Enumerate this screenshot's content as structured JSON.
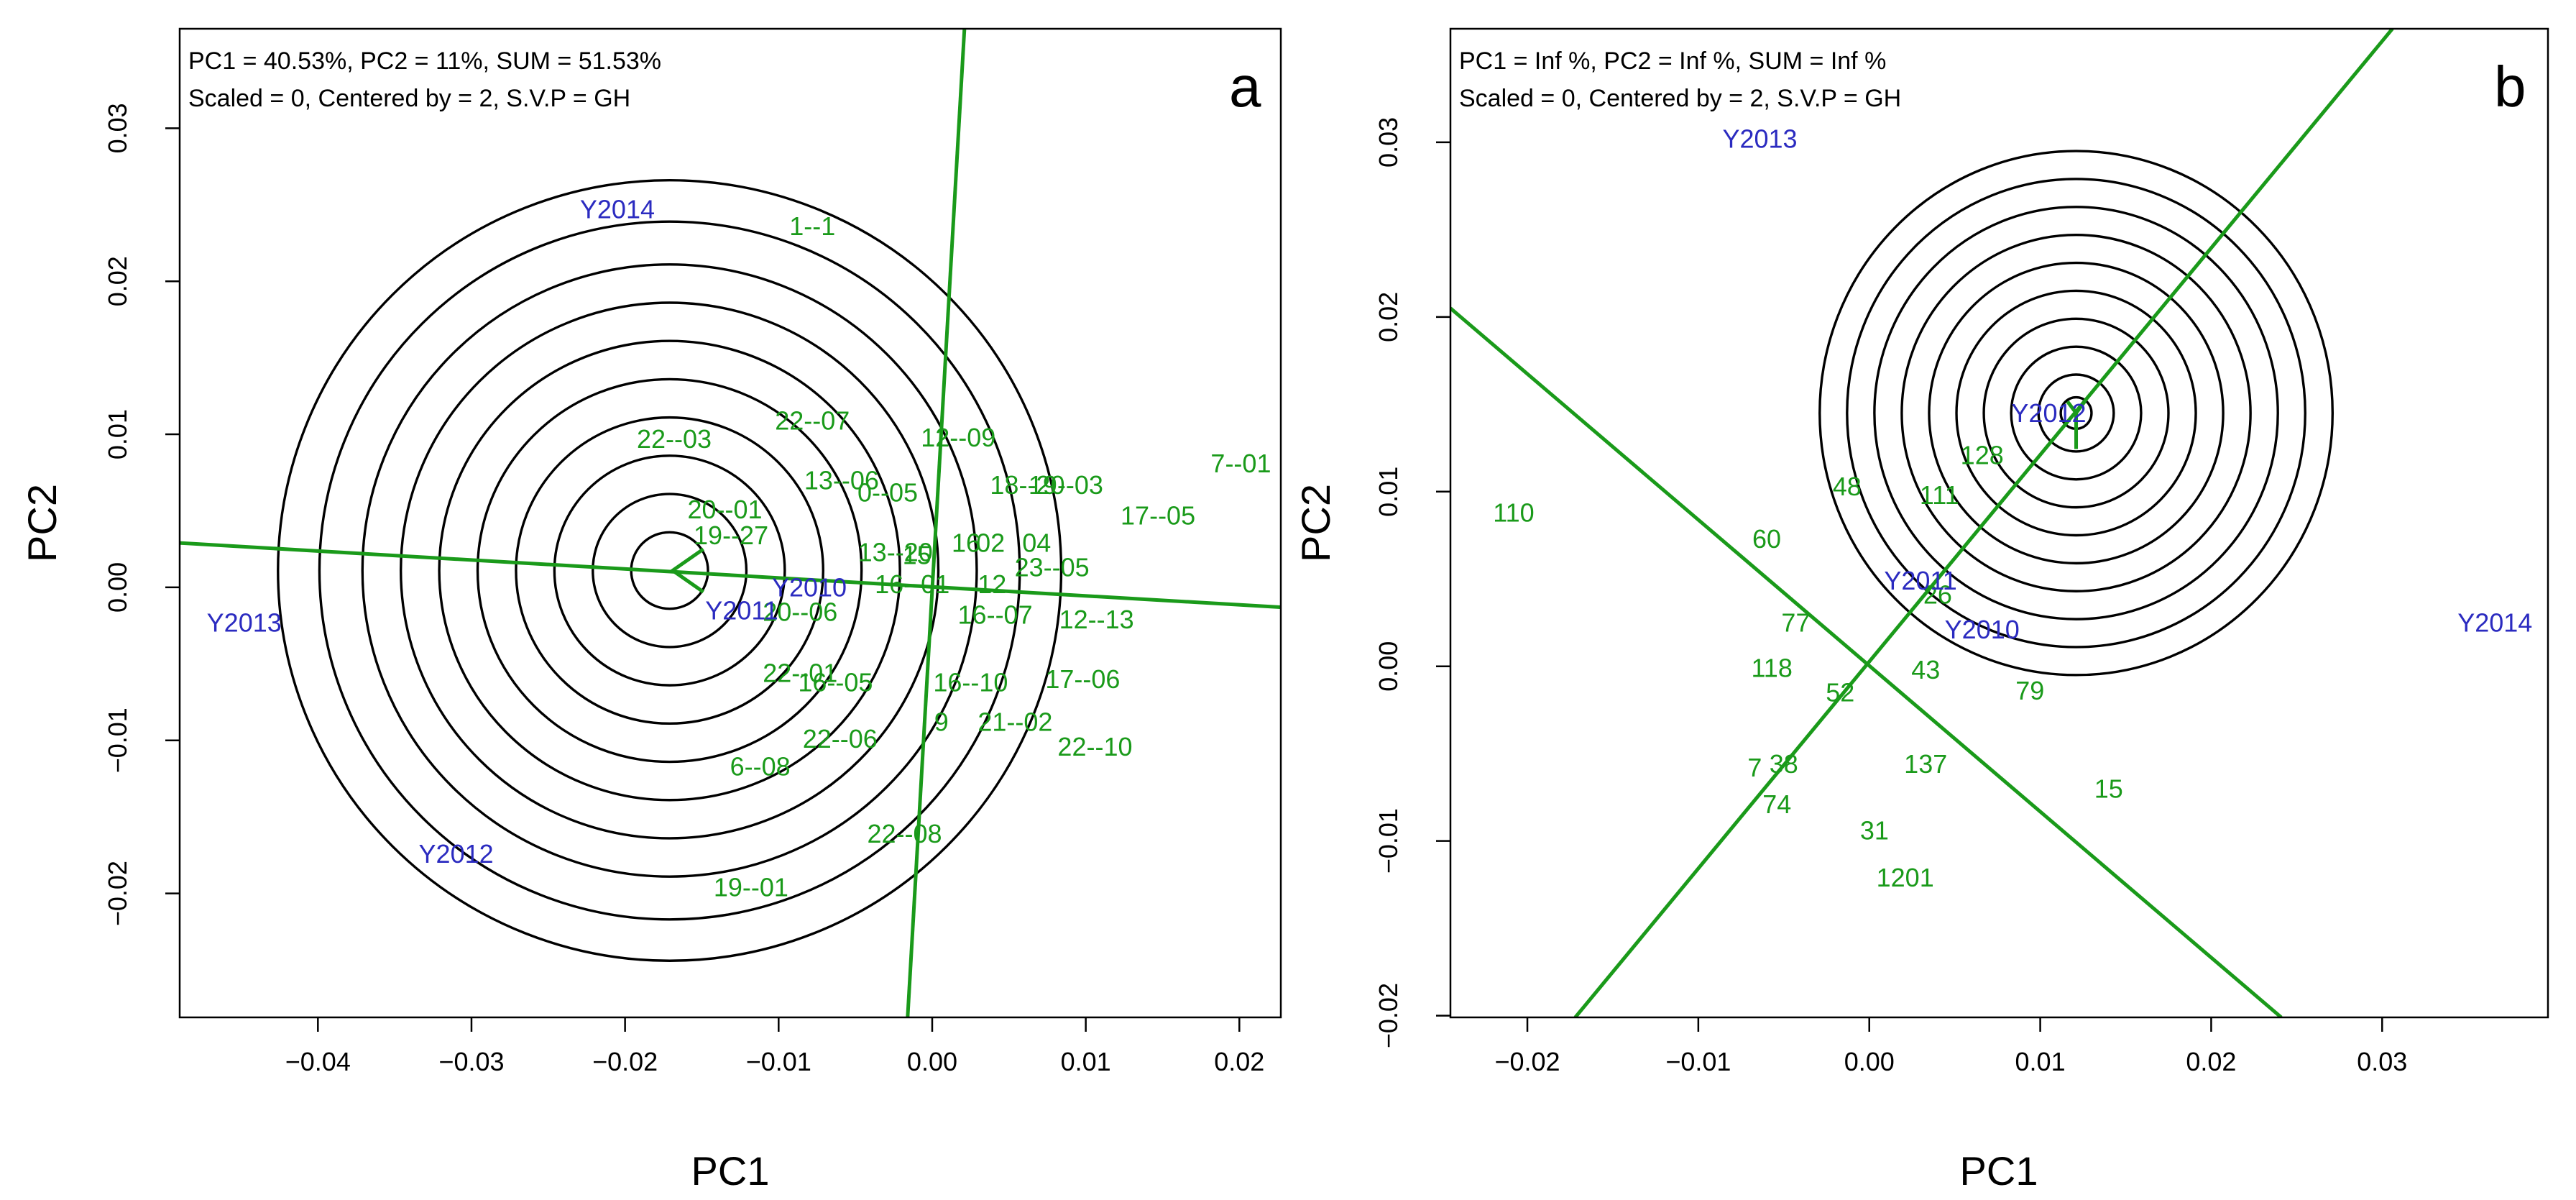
{
  "chart_data": [
    {
      "type": "scatter",
      "panel": "a",
      "info_lines": [
        "PC1 = 40.53%, PC2 = 11%, SUM = 51.53%",
        "Scaled = 0, Centered by = 2, S.V.P = GH"
      ],
      "xlabel": "PC1",
      "ylabel": "PC2",
      "xlim": [
        -0.049,
        0.0227
      ],
      "ylim": [
        -0.0281,
        0.0365
      ],
      "xticks": [
        -0.04,
        -0.03,
        -0.02,
        -0.01,
        0.0,
        0.01,
        0.02
      ],
      "xtick_labels": [
        "−0.04",
        "−0.03",
        "−0.02",
        "−0.01",
        "0.00",
        "0.01",
        "0.02"
      ],
      "yticks": [
        -0.02,
        -0.01,
        0.0,
        0.01,
        0.02,
        0.03
      ],
      "ytick_labels": [
        "−0.02",
        "−0.01",
        "0.00",
        "0.01",
        "0.02",
        "0.03"
      ],
      "rings": {
        "center": [
          -0.0171,
          0.0011
        ],
        "radii": [
          0.0025,
          0.005,
          0.0075,
          0.01,
          0.0125,
          0.015,
          0.0175,
          0.02,
          0.0228,
          0.0255
        ]
      },
      "lines": [
        {
          "from": [
            -0.049,
            0.0029
          ],
          "to": [
            0.0227,
            -0.0013
          ]
        },
        {
          "from": [
            -0.0016,
            -0.0281
          ],
          "to": [
            0.0021,
            0.0365
          ]
        }
      ],
      "arrow": {
        "tip": [
          -0.0169,
          0.0011
        ],
        "dx": 0.002,
        "dy": 0.0014
      },
      "environments": [
        {
          "label": "Y2014",
          "x": -0.0205,
          "y": 0.0247
        },
        {
          "label": "Y2013",
          "x": -0.0448,
          "y": -0.0023
        },
        {
          "label": "Y2012",
          "x": -0.031,
          "y": -0.0174
        },
        {
          "label": "Y2010",
          "x": -0.008,
          "y": 0.0
        },
        {
          "label": "Y2011",
          "x": -0.0124,
          "y": -0.0015
        }
      ],
      "genotypes": [
        {
          "label": "1--1",
          "x": -0.0078,
          "y": 0.0236
        },
        {
          "label": "22--07",
          "x": -0.0078,
          "y": 0.0109
        },
        {
          "label": "22--03",
          "x": -0.0168,
          "y": 0.0097
        },
        {
          "label": "12--09",
          "x": 0.0017,
          "y": 0.0098
        },
        {
          "label": "13--06",
          "x": -0.0059,
          "y": 0.007
        },
        {
          "label": "0--05",
          "x": -0.0029,
          "y": 0.0062
        },
        {
          "label": "18--20",
          "x": 0.0062,
          "y": 0.0067
        },
        {
          "label": "19--03",
          "x": 0.0087,
          "y": 0.0067
        },
        {
          "label": "7--01",
          "x": 0.0201,
          "y": 0.0081
        },
        {
          "label": "17--05",
          "x": 0.0147,
          "y": 0.0047
        },
        {
          "label": "20--01",
          "x": -0.0135,
          "y": 0.0051
        },
        {
          "label": "19--27",
          "x": -0.0131,
          "y": 0.0034
        },
        {
          "label": "13--20",
          "x": -0.0024,
          "y": 0.0023
        },
        {
          "label": "15",
          "x": -0.001,
          "y": 0.0021
        },
        {
          "label": "16",
          "x": 0.0022,
          "y": 0.0029
        },
        {
          "label": "02",
          "x": 0.0038,
          "y": 0.0029
        },
        {
          "label": "04",
          "x": 0.0068,
          "y": 0.0029
        },
        {
          "label": "23--05",
          "x": 0.0078,
          "y": 0.0013
        },
        {
          "label": "16--01",
          "x": -0.0013,
          "y": 0.0002
        },
        {
          "label": "12",
          "x": 0.0039,
          "y": 0.0002
        },
        {
          "label": "20--06",
          "x": -0.0086,
          "y": -0.0016
        },
        {
          "label": "16--07",
          "x": 0.0041,
          "y": -0.0018
        },
        {
          "label": "12--13",
          "x": 0.0107,
          "y": -0.0021
        },
        {
          "label": "22--01",
          "x": -0.0086,
          "y": -0.0056
        },
        {
          "label": "16--05",
          "x": -0.0063,
          "y": -0.0062
        },
        {
          "label": "16--10",
          "x": 0.0025,
          "y": -0.0062
        },
        {
          "label": "17--06",
          "x": 0.0098,
          "y": -0.006
        },
        {
          "label": "22--06",
          "x": -0.006,
          "y": -0.0099
        },
        {
          "label": "9",
          "x": 0.0006,
          "y": -0.0088
        },
        {
          "label": "21--02",
          "x": 0.0054,
          "y": -0.0088
        },
        {
          "label": "22--10",
          "x": 0.0106,
          "y": -0.0104
        },
        {
          "label": "6--08",
          "x": -0.0112,
          "y": -0.0117
        },
        {
          "label": "22--08",
          "x": -0.0018,
          "y": -0.0161
        },
        {
          "label": "19--01",
          "x": -0.0118,
          "y": -0.0196
        }
      ]
    },
    {
      "type": "scatter",
      "panel": "b",
      "info_lines": [
        "PC1 = Inf %, PC2 = Inf %, SUM = Inf %",
        "Scaled = 0, Centered by = 2, S.V.P = GH"
      ],
      "xlabel": "PC1",
      "ylabel": "PC2",
      "xlim": [
        -0.0245,
        0.0397
      ],
      "ylim": [
        -0.0201,
        0.0365
      ],
      "xticks": [
        -0.02,
        -0.01,
        0.0,
        0.01,
        0.02,
        0.03
      ],
      "xtick_labels": [
        "−0.02",
        "−0.01",
        "0.00",
        "0.01",
        "0.02",
        "0.03"
      ],
      "yticks": [
        -0.02,
        -0.01,
        0.0,
        0.01,
        0.02,
        0.03
      ],
      "ytick_labels": [
        "−0.02",
        "−0.01",
        "0.00",
        "0.01",
        "0.02",
        "0.03"
      ],
      "rings": {
        "center": [
          0.0121,
          0.0145
        ],
        "radii": [
          0.0009,
          0.0022,
          0.0038,
          0.0054,
          0.007,
          0.0086,
          0.0102,
          0.0118,
          0.0134,
          0.015
        ]
      },
      "lines": [
        {
          "from": [
            -0.0172,
            -0.0201
          ],
          "to": [
            0.0306,
            0.0365
          ]
        },
        {
          "from": [
            -0.0245,
            0.0205
          ],
          "to": [
            0.0241,
            -0.0201
          ]
        }
      ],
      "arrow": {
        "tip": [
          0.0121,
          0.0145
        ],
        "dx": 0.0,
        "dy": 0.0
      },
      "environments": [
        {
          "label": "Y2013",
          "x": -0.0064,
          "y": 0.0302
        },
        {
          "label": "Y2014",
          "x": 0.0366,
          "y": 0.0025
        },
        {
          "label": "Y2011",
          "x": 0.003,
          "y": 0.0049
        },
        {
          "label": "Y2010",
          "x": 0.0066,
          "y": 0.0021
        },
        {
          "label": "Y2012",
          "x": 0.0105,
          "y": 0.0145
        }
      ],
      "genotypes": [
        {
          "label": "110",
          "x": -0.0208,
          "y": 0.0088
        },
        {
          "label": "60",
          "x": -0.006,
          "y": 0.0073
        },
        {
          "label": "48",
          "x": -0.0013,
          "y": 0.0103
        },
        {
          "label": "128",
          "x": 0.0066,
          "y": 0.0121
        },
        {
          "label": "111",
          "x": 0.0041,
          "y": 0.0098
        },
        {
          "label": "26",
          "x": 0.004,
          "y": 0.0041
        },
        {
          "label": "77",
          "x": -0.0043,
          "y": 0.0025
        },
        {
          "label": "118",
          "x": -0.0057,
          "y": -0.0001
        },
        {
          "label": "52",
          "x": -0.0017,
          "y": -0.0015
        },
        {
          "label": "43",
          "x": 0.0033,
          "y": -0.0002
        },
        {
          "label": "79",
          "x": 0.0094,
          "y": -0.0014
        },
        {
          "label": "7",
          "x": -0.0067,
          "y": -0.0058
        },
        {
          "label": "38",
          "x": -0.005,
          "y": -0.0056
        },
        {
          "label": "74",
          "x": -0.0054,
          "y": -0.0079
        },
        {
          "label": "137",
          "x": 0.0033,
          "y": -0.0056
        },
        {
          "label": "15",
          "x": 0.014,
          "y": -0.007
        },
        {
          "label": "31",
          "x": 0.0003,
          "y": -0.0094
        },
        {
          "label": "1201",
          "x": 0.0021,
          "y": -0.0121
        }
      ]
    }
  ],
  "colors": {
    "genotype": "#1a9a1a",
    "environment": "#2b2bc0",
    "rings": "#000000"
  }
}
